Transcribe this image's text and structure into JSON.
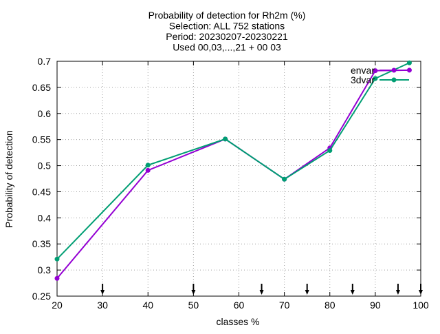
{
  "chart_data": {
    "type": "line",
    "title_lines": [
      "Probability of detection  for Rh2m (%)",
      "Selection: ALL    752 stations",
      "Period: 20230207-20230221",
      "Used 00,03,...,21 + 00 03"
    ],
    "xlabel": "classes %",
    "ylabel": "Probability of detection",
    "xlim": [
      20,
      100
    ],
    "ylim": [
      0.25,
      0.7
    ],
    "xticks": [
      20,
      30,
      40,
      50,
      60,
      70,
      80,
      90,
      100
    ],
    "yticks": [
      0.25,
      0.3,
      0.35,
      0.4,
      0.45,
      0.5,
      0.55,
      0.6,
      0.65,
      0.7
    ],
    "grid": true,
    "legend_position": "top-right",
    "series": [
      {
        "name": "envar",
        "color": "#9400d3",
        "x": [
          20,
          40,
          57,
          70,
          80,
          90,
          97.5
        ],
        "y": [
          0.284,
          0.491,
          0.551,
          0.474,
          0.534,
          0.682,
          0.683
        ]
      },
      {
        "name": "3dvar",
        "color": "#009e73",
        "x": [
          20,
          40,
          57,
          70,
          80,
          90,
          97.5
        ],
        "y": [
          0.321,
          0.501,
          0.551,
          0.474,
          0.529,
          0.667,
          0.697
        ]
      }
    ],
    "arrow_markers_x": [
      30,
      50,
      65,
      75,
      85,
      95,
      100
    ]
  }
}
